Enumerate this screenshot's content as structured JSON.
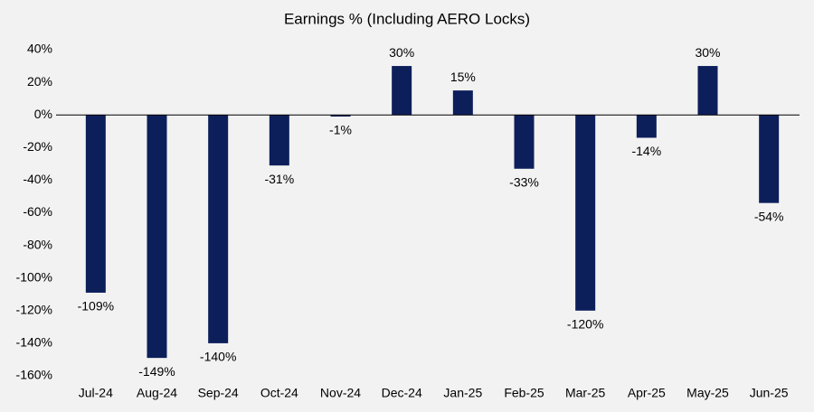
{
  "chart_data": {
    "type": "bar",
    "title": "Earnings % (Including AERO Locks)",
    "categories": [
      "Jul-24",
      "Aug-24",
      "Sep-24",
      "Oct-24",
      "Nov-24",
      "Dec-24",
      "Jan-25",
      "Feb-25",
      "Mar-25",
      "Apr-25",
      "May-25",
      "Jun-25"
    ],
    "values": [
      -109,
      -149,
      -140,
      -31,
      -1,
      30,
      15,
      -33,
      -120,
      -14,
      30,
      -54
    ],
    "value_labels": [
      "-109%",
      "-149%",
      "-140%",
      "-31%",
      "-1%",
      "30%",
      "15%",
      "-33%",
      "-120%",
      "-14%",
      "30%",
      "-54%"
    ],
    "color": "#0c1f5b",
    "ylim": [
      -160,
      40
    ],
    "yticks": [
      {
        "value": 40,
        "label": "40%"
      },
      {
        "value": 20,
        "label": "20%"
      },
      {
        "value": 0,
        "label": "0%"
      },
      {
        "value": -20,
        "label": "-20%"
      },
      {
        "value": -40,
        "label": "-40%"
      },
      {
        "value": -60,
        "label": "-60%"
      },
      {
        "value": -80,
        "label": "-80%"
      },
      {
        "value": -100,
        "label": "-100%"
      },
      {
        "value": -120,
        "label": "-120%"
      },
      {
        "value": -140,
        "label": "-140%"
      },
      {
        "value": -160,
        "label": "-160%"
      }
    ]
  }
}
